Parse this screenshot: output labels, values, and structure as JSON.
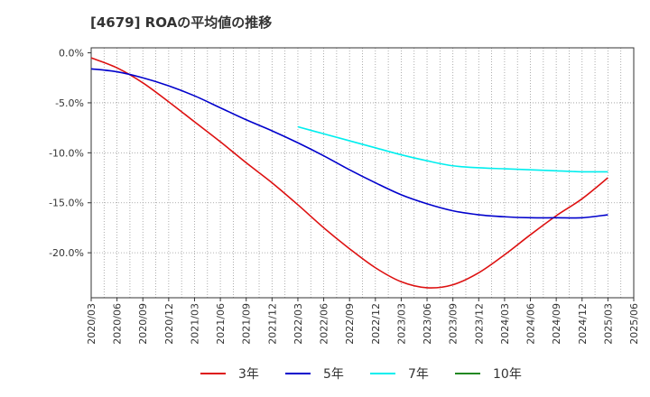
{
  "title": "[4679]  ROAの平均値の推移",
  "chart_data": {
    "type": "line",
    "title": "[4679]  ROAの平均値の推移",
    "xlabel": "",
    "ylabel": "",
    "x_ticks": [
      "2020/03",
      "2020/06",
      "2020/09",
      "2020/12",
      "2021/03",
      "2021/06",
      "2021/09",
      "2021/12",
      "2022/03",
      "2022/06",
      "2022/09",
      "2022/12",
      "2023/03",
      "2023/06",
      "2023/09",
      "2023/12",
      "2024/03",
      "2024/06",
      "2024/09",
      "2024/12",
      "2025/03",
      "2025/06"
    ],
    "y_ticks": [
      "0.0%",
      "-5.0%",
      "-10.0%",
      "-15.0%",
      "-20.0%"
    ],
    "y_tick_values": [
      0,
      -5,
      -10,
      -15,
      -20
    ],
    "ylim": [
      -24.5,
      0.5
    ],
    "grid": true,
    "legend_position": "bottom",
    "series": [
      {
        "name": "3年",
        "color": "#dd1111",
        "values": [
          [
            "2020/03",
            -0.5
          ],
          [
            "2020/06",
            -1.5
          ],
          [
            "2020/09",
            -3.0
          ],
          [
            "2020/12",
            -4.9
          ],
          [
            "2021/03",
            -6.9
          ],
          [
            "2021/06",
            -8.9
          ],
          [
            "2021/09",
            -11.0
          ],
          [
            "2021/12",
            -13.0
          ],
          [
            "2022/03",
            -15.2
          ],
          [
            "2022/06",
            -17.5
          ],
          [
            "2022/09",
            -19.6
          ],
          [
            "2022/12",
            -21.5
          ],
          [
            "2023/03",
            -22.9
          ],
          [
            "2023/06",
            -23.5
          ],
          [
            "2023/09",
            -23.2
          ],
          [
            "2023/12",
            -22.0
          ],
          [
            "2024/03",
            -20.2
          ],
          [
            "2024/06",
            -18.2
          ],
          [
            "2024/09",
            -16.3
          ],
          [
            "2024/12",
            -14.6
          ],
          [
            "2025/03",
            -12.5
          ]
        ]
      },
      {
        "name": "5年",
        "color": "#0000cc",
        "values": [
          [
            "2020/03",
            -1.6
          ],
          [
            "2020/06",
            -1.9
          ],
          [
            "2020/09",
            -2.5
          ],
          [
            "2020/12",
            -3.3
          ],
          [
            "2021/03",
            -4.3
          ],
          [
            "2021/06",
            -5.5
          ],
          [
            "2021/09",
            -6.7
          ],
          [
            "2021/12",
            -7.8
          ],
          [
            "2022/03",
            -9.0
          ],
          [
            "2022/06",
            -10.3
          ],
          [
            "2022/09",
            -11.7
          ],
          [
            "2022/12",
            -13.0
          ],
          [
            "2023/03",
            -14.2
          ],
          [
            "2023/06",
            -15.1
          ],
          [
            "2023/09",
            -15.8
          ],
          [
            "2023/12",
            -16.2
          ],
          [
            "2024/03",
            -16.4
          ],
          [
            "2024/06",
            -16.5
          ],
          [
            "2024/09",
            -16.5
          ],
          [
            "2024/12",
            -16.5
          ],
          [
            "2025/03",
            -16.2
          ]
        ]
      },
      {
        "name": "7年",
        "color": "#00eeee",
        "values": [
          [
            "2022/03",
            -7.4
          ],
          [
            "2022/06",
            -8.1
          ],
          [
            "2022/09",
            -8.8
          ],
          [
            "2022/12",
            -9.5
          ],
          [
            "2023/03",
            -10.2
          ],
          [
            "2023/06",
            -10.8
          ],
          [
            "2023/09",
            -11.3
          ],
          [
            "2023/12",
            -11.5
          ],
          [
            "2024/03",
            -11.6
          ],
          [
            "2024/06",
            -11.7
          ],
          [
            "2024/09",
            -11.8
          ],
          [
            "2024/12",
            -11.9
          ],
          [
            "2025/03",
            -11.9
          ]
        ]
      },
      {
        "name": "10年",
        "color": "#228822",
        "values": []
      }
    ]
  }
}
